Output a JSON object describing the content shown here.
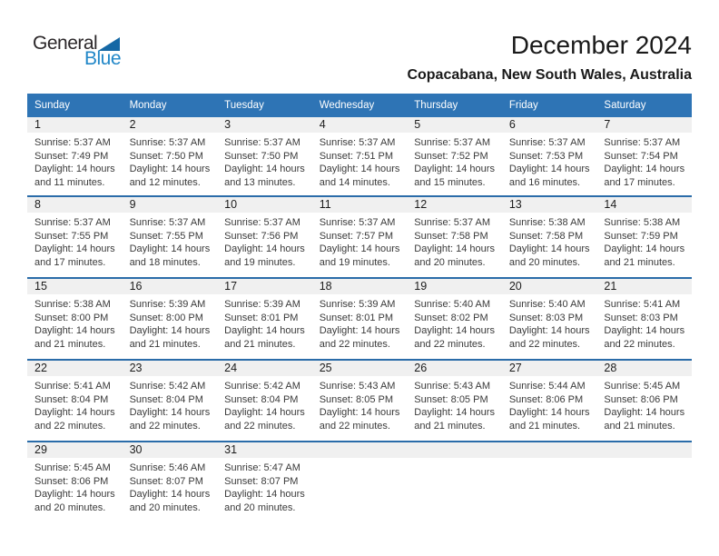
{
  "logo": {
    "text_dark": "General",
    "text_blue": "Blue"
  },
  "header": {
    "title": "December 2024",
    "subtitle": "Copacabana, New South Wales, Australia"
  },
  "colors": {
    "weekday_header_bg": "#2e74b5",
    "week_separator_line": "#2a6ca9",
    "day_number_band_bg": "#f0f0f0",
    "logo_triangle_blue": "#1568a5",
    "logo_text_blue": "#2187c8",
    "weekday_text": "#ffffff",
    "body_text": "#3a3a3a"
  },
  "calendar": {
    "weekdays": [
      "Sunday",
      "Monday",
      "Tuesday",
      "Wednesday",
      "Thursday",
      "Friday",
      "Saturday"
    ],
    "weeks": [
      [
        {
          "day": "1",
          "sunrise": "Sunrise: 5:37 AM",
          "sunset": "Sunset: 7:49 PM",
          "daylight1": "Daylight: 14 hours",
          "daylight2": "and 11 minutes."
        },
        {
          "day": "2",
          "sunrise": "Sunrise: 5:37 AM",
          "sunset": "Sunset: 7:50 PM",
          "daylight1": "Daylight: 14 hours",
          "daylight2": "and 12 minutes."
        },
        {
          "day": "3",
          "sunrise": "Sunrise: 5:37 AM",
          "sunset": "Sunset: 7:50 PM",
          "daylight1": "Daylight: 14 hours",
          "daylight2": "and 13 minutes."
        },
        {
          "day": "4",
          "sunrise": "Sunrise: 5:37 AM",
          "sunset": "Sunset: 7:51 PM",
          "daylight1": "Daylight: 14 hours",
          "daylight2": "and 14 minutes."
        },
        {
          "day": "5",
          "sunrise": "Sunrise: 5:37 AM",
          "sunset": "Sunset: 7:52 PM",
          "daylight1": "Daylight: 14 hours",
          "daylight2": "and 15 minutes."
        },
        {
          "day": "6",
          "sunrise": "Sunrise: 5:37 AM",
          "sunset": "Sunset: 7:53 PM",
          "daylight1": "Daylight: 14 hours",
          "daylight2": "and 16 minutes."
        },
        {
          "day": "7",
          "sunrise": "Sunrise: 5:37 AM",
          "sunset": "Sunset: 7:54 PM",
          "daylight1": "Daylight: 14 hours",
          "daylight2": "and 17 minutes."
        }
      ],
      [
        {
          "day": "8",
          "sunrise": "Sunrise: 5:37 AM",
          "sunset": "Sunset: 7:55 PM",
          "daylight1": "Daylight: 14 hours",
          "daylight2": "and 17 minutes."
        },
        {
          "day": "9",
          "sunrise": "Sunrise: 5:37 AM",
          "sunset": "Sunset: 7:55 PM",
          "daylight1": "Daylight: 14 hours",
          "daylight2": "and 18 minutes."
        },
        {
          "day": "10",
          "sunrise": "Sunrise: 5:37 AM",
          "sunset": "Sunset: 7:56 PM",
          "daylight1": "Daylight: 14 hours",
          "daylight2": "and 19 minutes."
        },
        {
          "day": "11",
          "sunrise": "Sunrise: 5:37 AM",
          "sunset": "Sunset: 7:57 PM",
          "daylight1": "Daylight: 14 hours",
          "daylight2": "and 19 minutes."
        },
        {
          "day": "12",
          "sunrise": "Sunrise: 5:37 AM",
          "sunset": "Sunset: 7:58 PM",
          "daylight1": "Daylight: 14 hours",
          "daylight2": "and 20 minutes."
        },
        {
          "day": "13",
          "sunrise": "Sunrise: 5:38 AM",
          "sunset": "Sunset: 7:58 PM",
          "daylight1": "Daylight: 14 hours",
          "daylight2": "and 20 minutes."
        },
        {
          "day": "14",
          "sunrise": "Sunrise: 5:38 AM",
          "sunset": "Sunset: 7:59 PM",
          "daylight1": "Daylight: 14 hours",
          "daylight2": "and 21 minutes."
        }
      ],
      [
        {
          "day": "15",
          "sunrise": "Sunrise: 5:38 AM",
          "sunset": "Sunset: 8:00 PM",
          "daylight1": "Daylight: 14 hours",
          "daylight2": "and 21 minutes."
        },
        {
          "day": "16",
          "sunrise": "Sunrise: 5:39 AM",
          "sunset": "Sunset: 8:00 PM",
          "daylight1": "Daylight: 14 hours",
          "daylight2": "and 21 minutes."
        },
        {
          "day": "17",
          "sunrise": "Sunrise: 5:39 AM",
          "sunset": "Sunset: 8:01 PM",
          "daylight1": "Daylight: 14 hours",
          "daylight2": "and 21 minutes."
        },
        {
          "day": "18",
          "sunrise": "Sunrise: 5:39 AM",
          "sunset": "Sunset: 8:01 PM",
          "daylight1": "Daylight: 14 hours",
          "daylight2": "and 22 minutes."
        },
        {
          "day": "19",
          "sunrise": "Sunrise: 5:40 AM",
          "sunset": "Sunset: 8:02 PM",
          "daylight1": "Daylight: 14 hours",
          "daylight2": "and 22 minutes."
        },
        {
          "day": "20",
          "sunrise": "Sunrise: 5:40 AM",
          "sunset": "Sunset: 8:03 PM",
          "daylight1": "Daylight: 14 hours",
          "daylight2": "and 22 minutes."
        },
        {
          "day": "21",
          "sunrise": "Sunrise: 5:41 AM",
          "sunset": "Sunset: 8:03 PM",
          "daylight1": "Daylight: 14 hours",
          "daylight2": "and 22 minutes."
        }
      ],
      [
        {
          "day": "22",
          "sunrise": "Sunrise: 5:41 AM",
          "sunset": "Sunset: 8:04 PM",
          "daylight1": "Daylight: 14 hours",
          "daylight2": "and 22 minutes."
        },
        {
          "day": "23",
          "sunrise": "Sunrise: 5:42 AM",
          "sunset": "Sunset: 8:04 PM",
          "daylight1": "Daylight: 14 hours",
          "daylight2": "and 22 minutes."
        },
        {
          "day": "24",
          "sunrise": "Sunrise: 5:42 AM",
          "sunset": "Sunset: 8:04 PM",
          "daylight1": "Daylight: 14 hours",
          "daylight2": "and 22 minutes."
        },
        {
          "day": "25",
          "sunrise": "Sunrise: 5:43 AM",
          "sunset": "Sunset: 8:05 PM",
          "daylight1": "Daylight: 14 hours",
          "daylight2": "and 22 minutes."
        },
        {
          "day": "26",
          "sunrise": "Sunrise: 5:43 AM",
          "sunset": "Sunset: 8:05 PM",
          "daylight1": "Daylight: 14 hours",
          "daylight2": "and 21 minutes."
        },
        {
          "day": "27",
          "sunrise": "Sunrise: 5:44 AM",
          "sunset": "Sunset: 8:06 PM",
          "daylight1": "Daylight: 14 hours",
          "daylight2": "and 21 minutes."
        },
        {
          "day": "28",
          "sunrise": "Sunrise: 5:45 AM",
          "sunset": "Sunset: 8:06 PM",
          "daylight1": "Daylight: 14 hours",
          "daylight2": "and 21 minutes."
        }
      ],
      [
        {
          "day": "29",
          "sunrise": "Sunrise: 5:45 AM",
          "sunset": "Sunset: 8:06 PM",
          "daylight1": "Daylight: 14 hours",
          "daylight2": "and 20 minutes."
        },
        {
          "day": "30",
          "sunrise": "Sunrise: 5:46 AM",
          "sunset": "Sunset: 8:07 PM",
          "daylight1": "Daylight: 14 hours",
          "daylight2": "and 20 minutes."
        },
        {
          "day": "31",
          "sunrise": "Sunrise: 5:47 AM",
          "sunset": "Sunset: 8:07 PM",
          "daylight1": "Daylight: 14 hours",
          "daylight2": "and 20 minutes."
        },
        null,
        null,
        null,
        null
      ]
    ]
  }
}
